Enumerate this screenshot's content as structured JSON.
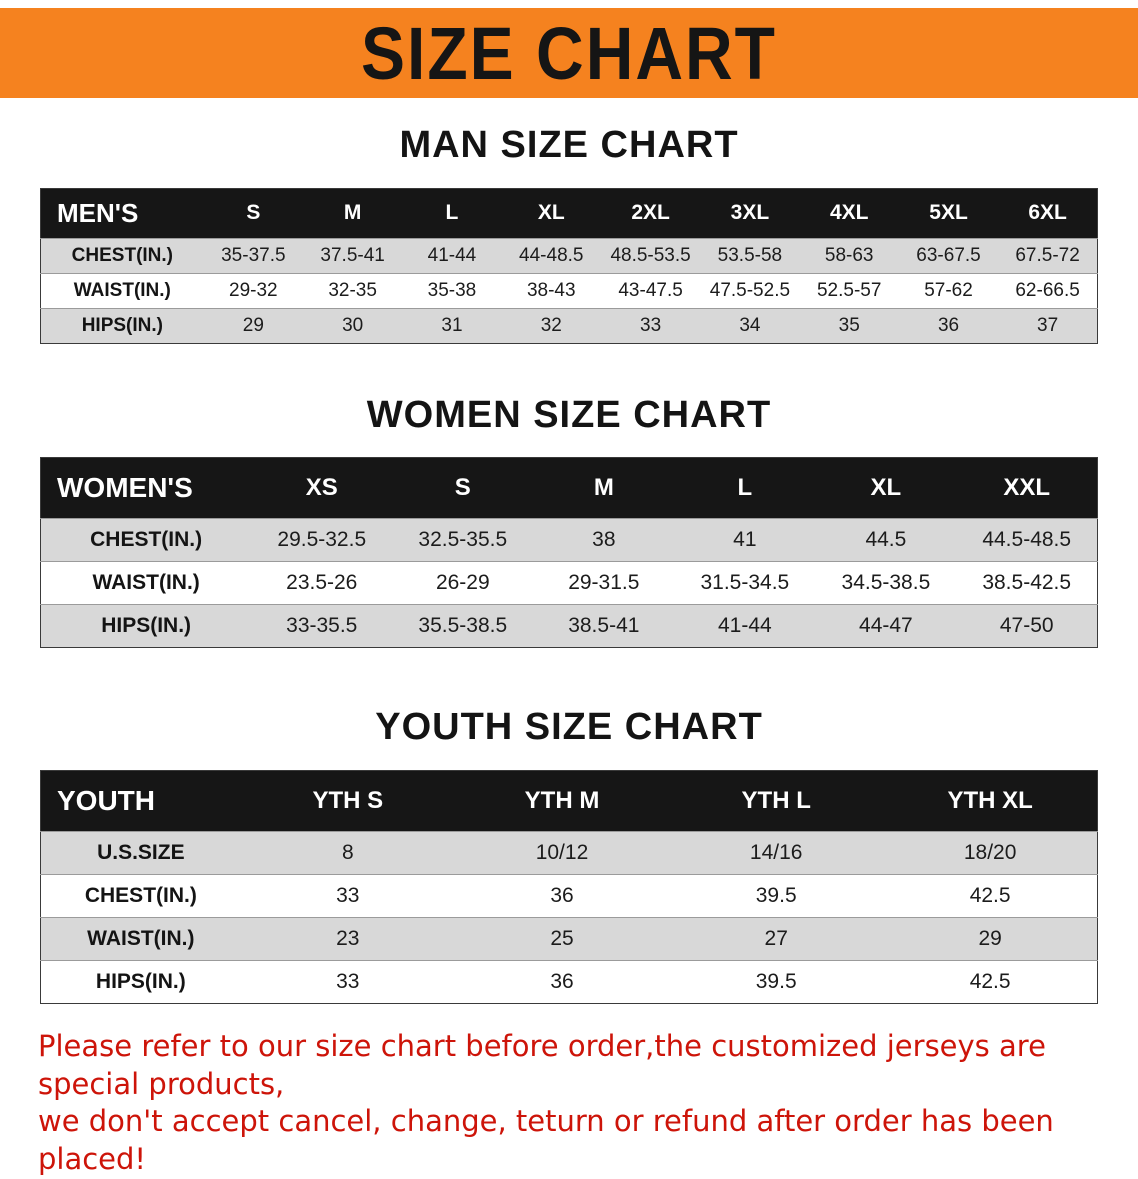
{
  "banner": {
    "title": "SIZE CHART"
  },
  "colors": {
    "banner_bg": "#f5821f",
    "header_bg": "#161616",
    "row_alt": "#d8d8d8",
    "disclaimer_color": "#cd1409"
  },
  "men": {
    "heading": "MAN SIZE CHART",
    "label": "MEN'S",
    "sizes": [
      "S",
      "M",
      "L",
      "XL",
      "2XL",
      "3XL",
      "4XL",
      "5XL",
      "6XL"
    ],
    "rows": [
      {
        "label": "CHEST(IN.)",
        "values": [
          "35-37.5",
          "37.5-41",
          "41-44",
          "44-48.5",
          "48.5-53.5",
          "53.5-58",
          "58-63",
          "63-67.5",
          "67.5-72"
        ]
      },
      {
        "label": "WAIST(IN.)",
        "values": [
          "29-32",
          "32-35",
          "35-38",
          "38-43",
          "43-47.5",
          "47.5-52.5",
          "52.5-57",
          "57-62",
          "62-66.5"
        ]
      },
      {
        "label": "HIPS(IN.)",
        "values": [
          "29",
          "30",
          "31",
          "32",
          "33",
          "34",
          "35",
          "36",
          "37"
        ]
      }
    ]
  },
  "women": {
    "heading": "WOMEN SIZE CHART",
    "label": "WOMEN'S",
    "sizes": [
      "XS",
      "S",
      "M",
      "L",
      "XL",
      "XXL"
    ],
    "rows": [
      {
        "label": "CHEST(IN.)",
        "values": [
          "29.5-32.5",
          "32.5-35.5",
          "38",
          "41",
          "44.5",
          "44.5-48.5"
        ]
      },
      {
        "label": "WAIST(IN.)",
        "values": [
          "23.5-26",
          "26-29",
          "29-31.5",
          "31.5-34.5",
          "34.5-38.5",
          "38.5-42.5"
        ]
      },
      {
        "label": "HIPS(IN.)",
        "values": [
          "33-35.5",
          "35.5-38.5",
          "38.5-41",
          "41-44",
          "44-47",
          "47-50"
        ]
      }
    ]
  },
  "youth": {
    "heading": "YOUTH SIZE CHART",
    "label": "YOUTH",
    "sizes": [
      "YTH S",
      "YTH M",
      "YTH L",
      "YTH XL"
    ],
    "rows": [
      {
        "label": "U.S.SIZE",
        "values": [
          "8",
          "10/12",
          "14/16",
          "18/20"
        ]
      },
      {
        "label": "CHEST(IN.)",
        "values": [
          "33",
          "36",
          "39.5",
          "42.5"
        ]
      },
      {
        "label": "WAIST(IN.)",
        "values": [
          "23",
          "25",
          "27",
          "29"
        ]
      },
      {
        "label": "HIPS(IN.)",
        "values": [
          "33",
          "36",
          "39.5",
          "42.5"
        ]
      }
    ]
  },
  "disclaimer": {
    "line1": "Please refer to our size chart before order,the customized jerseys are special products,",
    "line2": "we don't accept cancel, change, teturn or refund after order has been placed!"
  }
}
